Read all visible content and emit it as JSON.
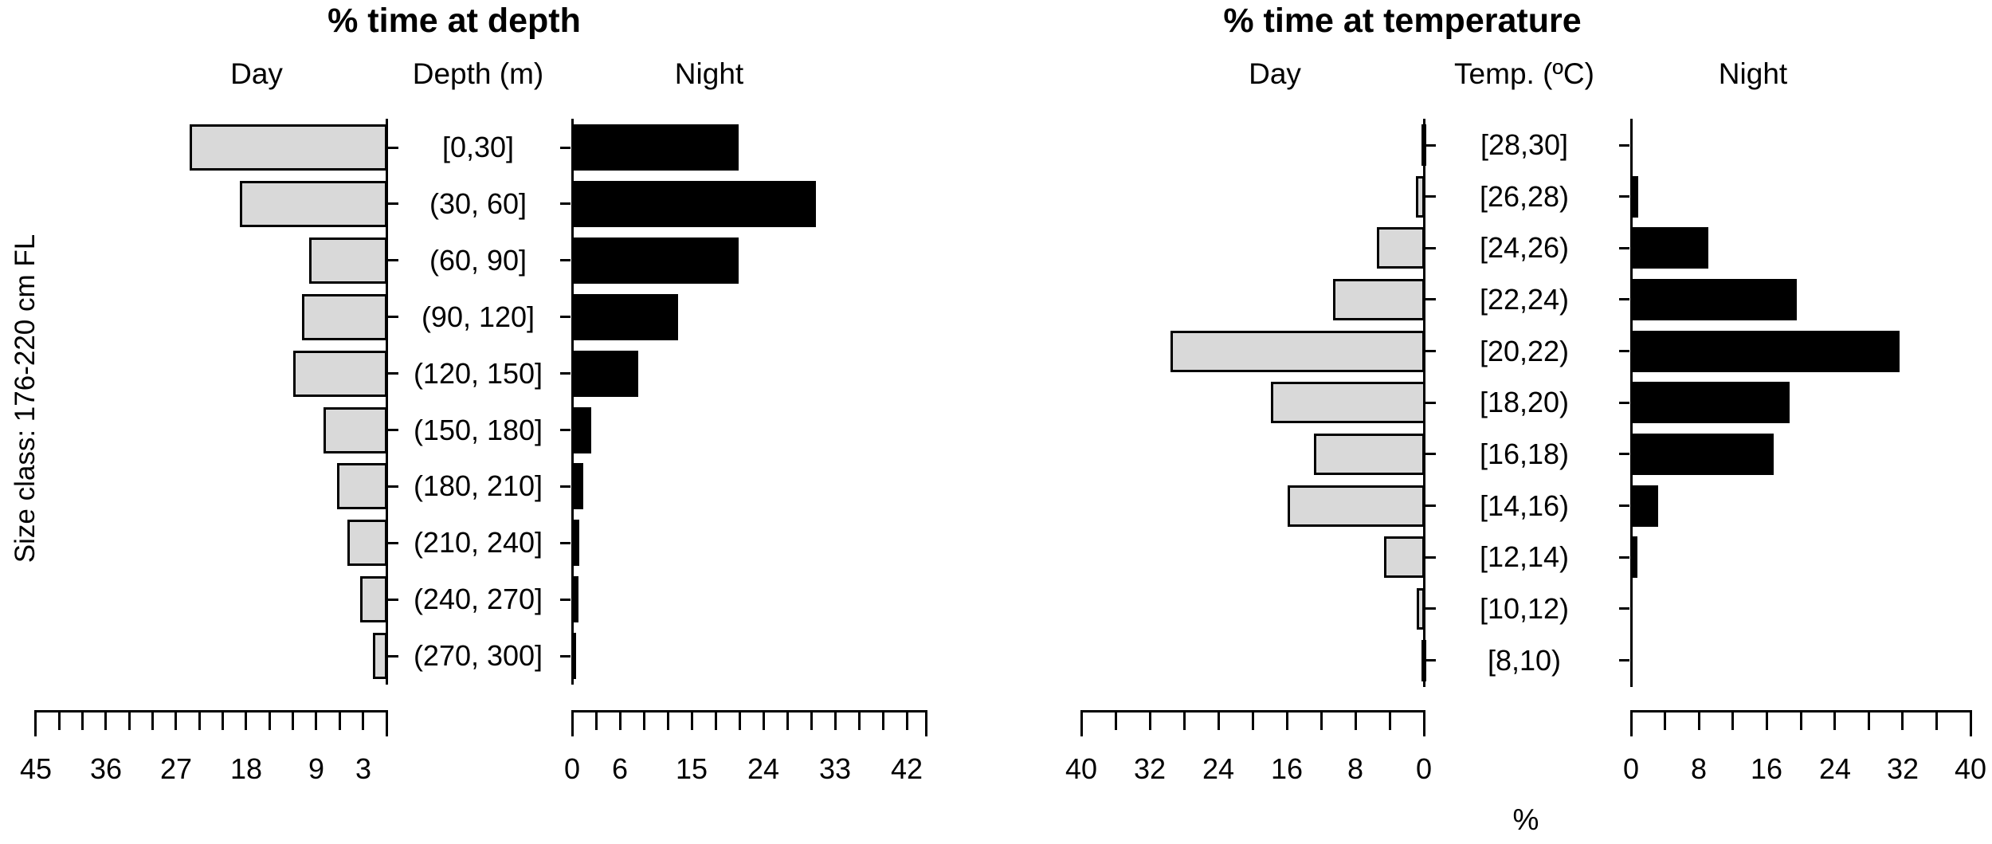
{
  "figure": {
    "ylabel": "Size class: 176-220 cm FL",
    "background": "#ffffff",
    "day_bar_color": "#d9d9d9",
    "night_bar_color": "#000000"
  },
  "chart_data": [
    {
      "type": "bar",
      "orientation": "horizontal-mirrored",
      "title": "% time at depth",
      "header_day": "Day",
      "header_center": "Depth (m)",
      "header_night": "Night",
      "categories": [
        "[0,30]",
        "(30, 60]",
        "(60, 90]",
        "(90, 120]",
        "(120, 150]",
        "(150, 180]",
        "(180, 210]",
        "(210, 240]",
        "(240, 270]",
        "(270, 300]"
      ],
      "series": [
        {
          "name": "Day",
          "side": "left",
          "values": [
            25.4,
            18.9,
            10.0,
            10.9,
            12.1,
            8.2,
            6.4,
            5.1,
            3.5,
            1.8
          ]
        },
        {
          "name": "Night",
          "side": "right",
          "values": [
            21.0,
            30.7,
            21.0,
            13.4,
            8.4,
            2.5,
            1.5,
            1.0,
            0.9,
            0.6
          ]
        }
      ],
      "day_axis": {
        "range": [
          0,
          45
        ],
        "tick_step": 3,
        "tick_labels": [
          "45",
          "36",
          "27",
          "18",
          "9",
          "3"
        ]
      },
      "night_axis": {
        "range": [
          0,
          45
        ],
        "tick_step": 3,
        "tick_labels": [
          "0",
          "6",
          "15",
          "24",
          "33",
          "42"
        ]
      },
      "xlabel": ""
    },
    {
      "type": "bar",
      "orientation": "horizontal-mirrored",
      "title": "% time at temperature",
      "header_day": "Day",
      "header_center": "Temp. (ºC)",
      "header_night": "Night",
      "categories": [
        "[28,30]",
        "[26,28)",
        "[24,26)",
        "[22,24)",
        "[20,22)",
        "[18,20)",
        "[16,18)",
        "[14,16)",
        "[12,14)",
        "[10,12)",
        "[8,10)"
      ],
      "series": [
        {
          "name": "Day",
          "side": "left",
          "values": [
            0.4,
            1.0,
            5.6,
            10.7,
            29.7,
            18.0,
            12.9,
            16.0,
            4.7,
            0.9,
            0.1
          ]
        },
        {
          "name": "Night",
          "side": "right",
          "values": [
            0.2,
            0.9,
            9.2,
            19.6,
            31.7,
            18.8,
            16.9,
            3.3,
            0.8,
            0.3,
            0.1
          ]
        }
      ],
      "day_axis": {
        "range": [
          0,
          40
        ],
        "tick_step": 4,
        "tick_labels": [
          "40",
          "32",
          "24",
          "16",
          "8",
          "0"
        ]
      },
      "night_axis": {
        "range": [
          0,
          40
        ],
        "tick_step": 4,
        "tick_labels": [
          "0",
          "8",
          "16",
          "24",
          "32",
          "40"
        ]
      },
      "xlabel": "%"
    }
  ]
}
